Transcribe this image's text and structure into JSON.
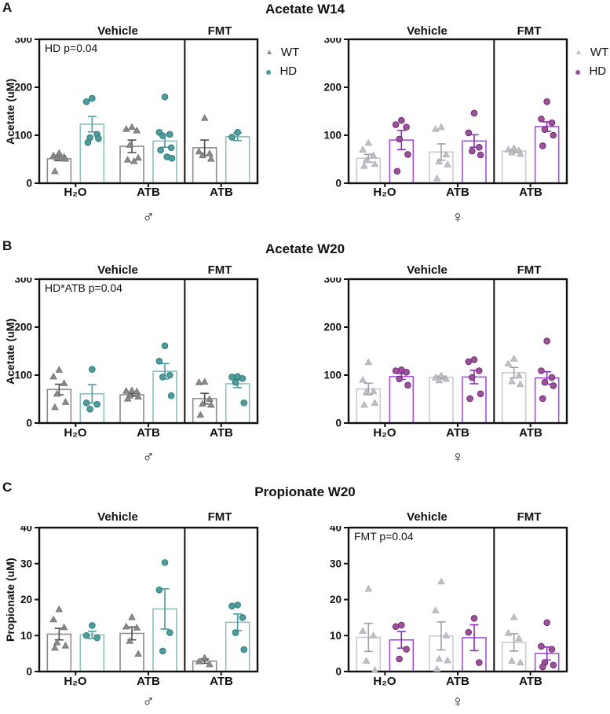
{
  "chart_data": [
    {
      "type": "bar",
      "panel": "A",
      "title": "Acetate W14",
      "sex": "male",
      "sex_symbol": "♂",
      "ylabel": "Acetate (uM)",
      "ylim": [
        0,
        300
      ],
      "yticks": [
        0,
        100,
        200,
        300
      ],
      "section_headers": [
        "Vehicle",
        "FMT"
      ],
      "categories": [
        "H₂O",
        "ATB",
        "ATB"
      ],
      "annotation": "HD p=0.04",
      "legend_position": "right",
      "grid": false,
      "series": [
        {
          "name": "WT",
          "marker": "triangle",
          "means": [
            51,
            77,
            74
          ],
          "sem": [
            4,
            13,
            16
          ],
          "points": [
            [
              63,
              58,
              55,
              53,
              51,
              25
            ],
            [
              117,
              113,
              110,
              80,
              53,
              49,
              46
            ],
            [
              136,
              66,
              62,
              58,
              51
            ]
          ]
        },
        {
          "name": "HD",
          "marker": "circle",
          "means": [
            123,
            88,
            97
          ],
          "sem": [
            16,
            13,
            8
          ],
          "points": [
            [
              177,
              170,
              102,
              95,
              93,
              85
            ],
            [
              180,
              106,
              102,
              99,
              74,
              69,
              55,
              52
            ],
            [
              106,
              96
            ]
          ]
        }
      ],
      "colors": {
        "wt_bar": "#8E8E8E",
        "wt_point": "#8A8A8A",
        "wt_point_stroke": "#6A6A6A",
        "wt_err": "#4F4F4F",
        "hd_bar": "#8FBFBF",
        "hd_point": "#4E9C9C",
        "hd_point_stroke": "#2E7B7B",
        "hd_err": "#4E9C9C"
      }
    },
    {
      "type": "bar",
      "panel": "A",
      "title": "Acetate W14",
      "sex": "female",
      "sex_symbol": "♀",
      "ylabel": "Acetate (uM)",
      "ylim": [
        0,
        300
      ],
      "yticks": [
        0,
        100,
        200,
        300
      ],
      "section_headers": [
        "Vehicle",
        "FMT"
      ],
      "categories": [
        "H₂O",
        "ATB",
        "ATB"
      ],
      "annotation": "",
      "legend_position": "right",
      "grid": false,
      "series": [
        {
          "name": "WT",
          "marker": "triangle",
          "means": [
            52,
            65,
            67
          ],
          "sem": [
            8,
            17,
            3
          ],
          "points": [
            [
              84,
              70,
              58,
              48,
              40,
              36
            ],
            [
              117,
              113,
              60,
              45,
              39,
              10
            ],
            [
              73,
              70,
              68,
              64,
              61
            ]
          ]
        },
        {
          "name": "HD",
          "marker": "circle",
          "means": [
            90,
            88,
            118
          ],
          "sem": [
            20,
            13,
            10
          ],
          "points": [
            [
              131,
              122,
              117,
              92,
              60,
              25
            ],
            [
              146,
              105,
              75,
              67,
              59
            ],
            [
              170,
              134,
              126,
              112,
              100,
              78
            ]
          ]
        }
      ],
      "colors": {
        "wt_bar": "#C9C9D0",
        "wt_point": "#BFBFC7",
        "wt_point_stroke": "#A8A8B0",
        "wt_err": "#9F9FA8",
        "hd_bar": "#A24FDE",
        "hd_point": "#9E509C",
        "hd_point_stroke": "#6B2F6B",
        "hd_err": "#8B2FB8"
      }
    },
    {
      "type": "bar",
      "panel": "B",
      "title": "Acetate W20",
      "sex": "male",
      "sex_symbol": "♂",
      "ylabel": "Acetate (uM)",
      "ylim": [
        0,
        300
      ],
      "yticks": [
        0,
        100,
        200,
        300
      ],
      "section_headers": [
        "Vehicle",
        "FMT"
      ],
      "categories": [
        "H₂O",
        "ATB",
        "ATB"
      ],
      "annotation": "HD*ATB p=0.04",
      "legend_position": "none",
      "grid": false,
      "series": [
        {
          "name": "WT",
          "marker": "triangle",
          "means": [
            70,
            59,
            51
          ],
          "sem": [
            11,
            3,
            11
          ],
          "points": [
            [
              111,
              97,
              83,
              61,
              44,
              33
            ],
            [
              68,
              67,
              66,
              57,
              55,
              51
            ],
            [
              86,
              85,
              50,
              40,
              38,
              17
            ]
          ]
        },
        {
          "name": "HD",
          "marker": "circle",
          "means": [
            61,
            108,
            82
          ],
          "sem": [
            19,
            16,
            8
          ],
          "points": [
            [
              112,
              42,
              39,
              29
            ],
            [
              161,
              129,
              100,
              96,
              57
            ],
            [
              97,
              96,
              93,
              85,
              42
            ]
          ]
        }
      ],
      "colors": {
        "wt_bar": "#8E8E8E",
        "wt_point": "#8A8A8A",
        "wt_point_stroke": "#6A6A6A",
        "wt_err": "#4F4F4F",
        "hd_bar": "#8FBFBF",
        "hd_point": "#4E9C9C",
        "hd_point_stroke": "#2E7B7B",
        "hd_err": "#4E9C9C"
      }
    },
    {
      "type": "bar",
      "panel": "B",
      "title": "Acetate W20",
      "sex": "female",
      "sex_symbol": "♀",
      "ylabel": "Acetate (uM)",
      "ylim": [
        0,
        300
      ],
      "yticks": [
        0,
        100,
        200,
        300
      ],
      "section_headers": [
        "Vehicle",
        "FMT"
      ],
      "categories": [
        "H₂O",
        "ATB",
        "ATB"
      ],
      "annotation": "",
      "legend_position": "none",
      "grid": false,
      "series": [
        {
          "name": "WT",
          "marker": "triangle",
          "means": [
            71,
            95,
            105
          ],
          "sem": [
            12,
            3,
            11
          ],
          "points": [
            [
              127,
              90,
              66,
              65,
              42,
              38
            ],
            [
              99,
              95,
              92,
              89
            ],
            [
              134,
              124,
              99,
              87,
              81
            ]
          ]
        },
        {
          "name": "HD",
          "marker": "circle",
          "means": [
            97,
            96,
            94
          ],
          "sem": [
            6,
            14,
            13
          ],
          "points": [
            [
              111,
              109,
              106,
              92,
              79
            ],
            [
              132,
              128,
              109,
              95,
              61,
              51
            ],
            [
              171,
              109,
              95,
              85,
              78,
              51
            ]
          ]
        }
      ],
      "colors": {
        "wt_bar": "#C9C9D0",
        "wt_point": "#BFBFC7",
        "wt_point_stroke": "#A8A8B0",
        "wt_err": "#9F9FA8",
        "hd_bar": "#A24FDE",
        "hd_point": "#9E509C",
        "hd_point_stroke": "#6B2F6B",
        "hd_err": "#8B2FB8"
      }
    },
    {
      "type": "bar",
      "panel": "C",
      "title": "Propionate W20",
      "sex": "male",
      "sex_symbol": "♂",
      "ylabel": "Propionate (uM)",
      "ylim": [
        0,
        40
      ],
      "yticks": [
        0,
        10,
        20,
        30,
        40
      ],
      "section_headers": [
        "Vehicle",
        "FMT"
      ],
      "categories": [
        "H₂O",
        "ATB",
        "ATB"
      ],
      "annotation": "",
      "legend_position": "none",
      "grid": false,
      "series": [
        {
          "name": "WT",
          "marker": "triangle",
          "means": [
            10.4,
            10.6,
            2.9
          ],
          "sem": [
            1.6,
            1.8,
            0.6
          ],
          "points": [
            [
              17.3,
              14.5,
              12.3,
              8.1,
              7.2,
              6.6
            ],
            [
              15.1,
              12.5,
              12.2,
              8.5,
              4.9
            ],
            [
              3.8,
              2.8,
              2.0
            ]
          ]
        },
        {
          "name": "HD",
          "marker": "circle",
          "means": [
            10.2,
            17.4,
            13.7
          ],
          "sem": [
            1.0,
            5.6,
            2.3
          ],
          "points": [
            [
              12.8,
              10.0,
              9.4
            ],
            [
              30.3,
              22.7,
              10.8,
              5.7
            ],
            [
              18.5,
              18.2,
              15.0,
              10.8,
              6.1
            ]
          ]
        }
      ],
      "colors": {
        "wt_bar": "#8E8E8E",
        "wt_point": "#8A8A8A",
        "wt_point_stroke": "#6A6A6A",
        "wt_err": "#4F4F4F",
        "hd_bar": "#8FBFBF",
        "hd_point": "#4E9C9C",
        "hd_point_stroke": "#2E7B7B",
        "hd_err": "#4E9C9C"
      }
    },
    {
      "type": "bar",
      "panel": "C",
      "title": "Propionate W20",
      "sex": "female",
      "sex_symbol": "♀",
      "ylabel": "Propionate (uM)",
      "ylim": [
        0,
        40
      ],
      "yticks": [
        0,
        10,
        20,
        30,
        40
      ],
      "section_headers": [
        "Vehicle",
        "FMT"
      ],
      "categories": [
        "H₂O",
        "ATB",
        "ATB"
      ],
      "annotation": "FMT p=0.04",
      "legend_position": "none",
      "grid": false,
      "series": [
        {
          "name": "WT",
          "marker": "triangle",
          "means": [
            9.5,
            9.9,
            8.1
          ],
          "sem": [
            3.9,
            3.9,
            2.4
          ],
          "points": [
            [
              23.0,
              11.3,
              10.0,
              3.0,
              0.4
            ],
            [
              25.0,
              17.0,
              10.0,
              3.5,
              3.1,
              0.7
            ],
            [
              15.1,
              10.7,
              9.2,
              3.0,
              2.5
            ]
          ]
        },
        {
          "name": "HD",
          "marker": "circle",
          "means": [
            8.8,
            9.4,
            5.0
          ],
          "sem": [
            2.3,
            3.6,
            1.8
          ],
          "points": [
            [
              12.9,
              12.5,
              6.2,
              3.5
            ],
            [
              14.8,
              10.9,
              2.5
            ],
            [
              13.6,
              7.0,
              6.2,
              2.5,
              1.8,
              1.3
            ]
          ]
        }
      ],
      "colors": {
        "wt_bar": "#C9C9D0",
        "wt_point": "#BFBFC7",
        "wt_point_stroke": "#A8A8B0",
        "wt_err": "#9F9FA8",
        "hd_bar": "#A24FDE",
        "hd_point": "#9E509C",
        "hd_point_stroke": "#6B2F6B",
        "hd_err": "#8B2FB8"
      }
    }
  ]
}
